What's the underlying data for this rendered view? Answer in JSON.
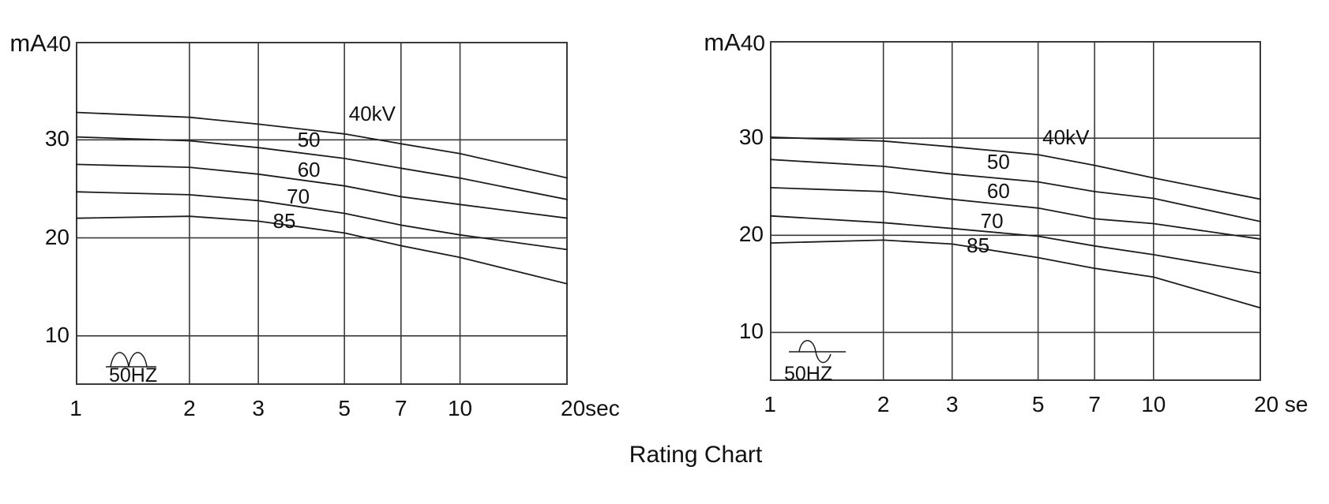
{
  "figure": {
    "title": "Rating Chart"
  },
  "colors": {
    "ink": "#1c1c1c",
    "grid": "#3a3a3a",
    "background": "#ffffff"
  },
  "chart_data": [
    {
      "type": "line",
      "position": "left",
      "title": "",
      "x_scale": "log",
      "xlim": [
        1,
        20
      ],
      "ylim": [
        5,
        40
      ],
      "grid": true,
      "x_unit": "sec",
      "x": [
        1,
        2,
        3,
        5,
        7,
        10,
        20
      ],
      "x_tick_labels": [
        "1",
        "2",
        "3",
        "5",
        "7",
        "10",
        "20sec"
      ],
      "y_axis": {
        "unit": "mA",
        "top_tick": "40",
        "ticks": [
          "30",
          "20",
          "10"
        ]
      },
      "y_gridlines": [
        40,
        30,
        20,
        10
      ],
      "waveform": {
        "type": "full-wave-rectified",
        "label": "50HZ"
      },
      "series": [
        {
          "name": "40kV",
          "label": "40kV",
          "values": [
            32.8,
            32.3,
            31.6,
            30.6,
            29.6,
            28.6,
            26.1
          ],
          "label_at": {
            "x": 5.9,
            "mA": 32.7
          }
        },
        {
          "name": "50kV",
          "label": "50",
          "values": [
            30.3,
            29.9,
            29.2,
            28.1,
            27.1,
            26.1,
            23.9
          ],
          "label_at": {
            "x": 4.05,
            "mA": 30.0
          }
        },
        {
          "name": "60kV",
          "label": "60",
          "values": [
            27.5,
            27.2,
            26.5,
            25.3,
            24.2,
            23.4,
            22.0
          ],
          "label_at": {
            "x": 4.05,
            "mA": 27.0
          }
        },
        {
          "name": "70kV",
          "label": "70",
          "values": [
            24.7,
            24.4,
            23.8,
            22.5,
            21.3,
            20.3,
            18.8
          ],
          "label_at": {
            "x": 3.8,
            "mA": 24.2
          }
        },
        {
          "name": "85kV",
          "label": "85",
          "values": [
            22.0,
            22.2,
            21.7,
            20.5,
            19.2,
            18.0,
            15.3
          ],
          "label_at": {
            "x": 3.5,
            "mA": 21.7
          }
        }
      ]
    },
    {
      "type": "line",
      "position": "right",
      "title": "",
      "x_scale": "log",
      "xlim": [
        1,
        20
      ],
      "ylim": [
        5,
        40
      ],
      "grid": true,
      "x_unit": "se",
      "x": [
        1,
        2,
        3,
        5,
        7,
        10,
        20
      ],
      "x_tick_labels": [
        "1",
        "2",
        "3",
        "5",
        "7",
        "10",
        "20 se"
      ],
      "y_axis": {
        "unit": "mA",
        "top_tick": "40",
        "ticks": [
          "30",
          "20",
          "10"
        ]
      },
      "y_gridlines": [
        40,
        30,
        20,
        10
      ],
      "waveform": {
        "type": "sine",
        "label": "50HZ"
      },
      "series": [
        {
          "name": "40kV",
          "label": "40kV",
          "values": [
            30.1,
            29.7,
            29.1,
            28.3,
            27.2,
            25.9,
            23.7
          ],
          "label_at": {
            "x": 5.9,
            "mA": 30.1
          }
        },
        {
          "name": "50kV",
          "label": "50",
          "values": [
            27.8,
            27.1,
            26.3,
            25.5,
            24.5,
            23.8,
            21.4
          ],
          "label_at": {
            "x": 3.95,
            "mA": 27.6
          }
        },
        {
          "name": "60kV",
          "label": "60",
          "values": [
            24.9,
            24.5,
            23.7,
            22.8,
            21.7,
            21.2,
            19.6
          ],
          "label_at": {
            "x": 3.95,
            "mA": 24.6
          }
        },
        {
          "name": "70kV",
          "label": "70",
          "values": [
            22.0,
            21.3,
            20.7,
            19.9,
            18.9,
            18.0,
            16.1
          ],
          "label_at": {
            "x": 3.8,
            "mA": 21.5
          }
        },
        {
          "name": "85kV",
          "label": "85",
          "values": [
            19.2,
            19.5,
            19.1,
            17.7,
            16.6,
            15.7,
            12.5
          ],
          "label_at": {
            "x": 3.5,
            "mA": 19.0
          }
        }
      ]
    }
  ]
}
